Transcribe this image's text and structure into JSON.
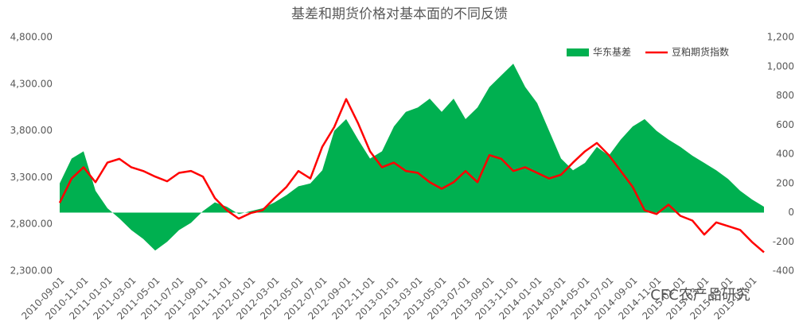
{
  "chart_data": {
    "type": "line-area",
    "title": "基差和期货价格对基本面的不同反馈",
    "watermark": "CFC农产品研究",
    "legend": "upper right",
    "x": [
      "2010-09-01",
      "2010-10-01",
      "2010-11-01",
      "2010-12-01",
      "2011-01-01",
      "2011-02-01",
      "2011-03-01",
      "2011-04-01",
      "2011-05-01",
      "2011-06-01",
      "2011-07-01",
      "2011-08-01",
      "2011-09-01",
      "2011-10-01",
      "2011-11-01",
      "2011-12-01",
      "2012-01-01",
      "2012-02-01",
      "2012-03-01",
      "2012-04-01",
      "2012-05-01",
      "2012-06-01",
      "2012-07-01",
      "2012-08-01",
      "2012-09-01",
      "2012-10-01",
      "2012-11-01",
      "2012-12-01",
      "2013-01-01",
      "2013-02-01",
      "2013-03-01",
      "2013-04-01",
      "2013-05-01",
      "2013-06-01",
      "2013-07-01",
      "2013-08-01",
      "2013-09-01",
      "2013-10-01",
      "2013-11-01",
      "2013-12-01",
      "2014-01-01",
      "2014-02-01",
      "2014-03-01",
      "2014-04-01",
      "2014-05-01",
      "2014-06-01",
      "2014-07-01",
      "2014-08-01",
      "2014-09-01",
      "2014-10-01",
      "2014-11-01",
      "2014-12-01",
      "2015-01-01",
      "2015-02-01",
      "2015-03-01",
      "2015-04-01",
      "2015-05-01",
      "2015-06-01",
      "2015-07-01",
      "2015-08-01"
    ],
    "xticks": [
      "2010-09-01",
      "2010-11-01",
      "2011-01-01",
      "2011-03-01",
      "2011-05-01",
      "2011-07-01",
      "2011-09-01",
      "2011-11-01",
      "2012-01-01",
      "2012-03-01",
      "2012-05-01",
      "2012-07-01",
      "2012-09-01",
      "2012-11-01",
      "2013-01-01",
      "2013-03-01",
      "2013-05-01",
      "2013-07-01",
      "2013-09-01",
      "2013-11-01",
      "2014-01-01",
      "2014-03-01",
      "2014-05-01",
      "2014-07-01",
      "2014-09-01",
      "2014-11-01",
      "2015-01-01",
      "2015-03-01",
      "2015-05-01",
      "2015-07-01"
    ],
    "series": [
      {
        "name": "华东基差",
        "color": "#00b050",
        "kind": "area",
        "axis": "y2",
        "values": [
          200,
          370,
          420,
          150,
          30,
          -40,
          -120,
          -180,
          -260,
          -200,
          -120,
          -70,
          10,
          70,
          40,
          -10,
          10,
          30,
          70,
          120,
          180,
          200,
          290,
          560,
          640,
          500,
          370,
          420,
          590,
          690,
          720,
          780,
          690,
          780,
          640,
          720,
          860,
          940,
          1020,
          860,
          750,
          560,
          370,
          290,
          340,
          450,
          390,
          500,
          590,
          640,
          560,
          500,
          450,
          390,
          340,
          290,
          230,
          150,
          90,
          40
        ]
      },
      {
        "name": "豆粕期货指数",
        "color": "#ff0000",
        "kind": "line",
        "values": [
          3030,
          3290,
          3410,
          3250,
          3460,
          3500,
          3410,
          3370,
          3310,
          3260,
          3350,
          3370,
          3310,
          3080,
          2950,
          2860,
          2920,
          2950,
          3080,
          3200,
          3370,
          3290,
          3630,
          3840,
          4140,
          3880,
          3580,
          3410,
          3460,
          3370,
          3350,
          3250,
          3180,
          3250,
          3370,
          3250,
          3540,
          3500,
          3370,
          3410,
          3350,
          3290,
          3330,
          3460,
          3580,
          3670,
          3540,
          3370,
          3200,
          2950,
          2910,
          3010,
          2890,
          2840,
          2690,
          2820,
          2780,
          2740,
          2610,
          2500
        ]
      }
    ],
    "ylim": [
      2300,
      4800
    ],
    "yticks": [
      {
        "value": 2300,
        "label": "2,300.00"
      },
      {
        "value": 2800,
        "label": "2,800.00"
      },
      {
        "value": 3300,
        "label": "3,300.00"
      },
      {
        "value": 3800,
        "label": "3,800.00"
      },
      {
        "value": 4300,
        "label": "4,300.00"
      },
      {
        "value": 4800,
        "label": "4,800.00"
      }
    ],
    "y2lim": [
      -400,
      1200
    ],
    "y2ticks": [
      -400,
      -200,
      0,
      200,
      400,
      600,
      800,
      {
        "value": 1000,
        "label": "1,000"
      },
      {
        "value": 1200,
        "label": "1,200"
      }
    ]
  }
}
